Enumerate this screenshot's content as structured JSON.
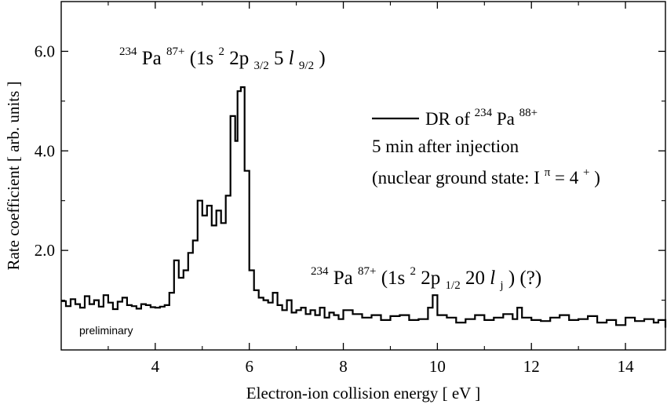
{
  "chart_data": {
    "type": "line",
    "xlabel": "Electron-ion collision energy [ eV ]",
    "ylabel": "Rate coefficient [ arb. units ]",
    "xlim": [
      2.0,
      14.85
    ],
    "ylim": [
      0.0,
      7.0
    ],
    "x_ticks": [
      4,
      6,
      8,
      10,
      12,
      14
    ],
    "x_tick_labels": [
      "4",
      "6",
      "8",
      "10",
      "12",
      "14"
    ],
    "y_ticks": [
      2.0,
      4.0,
      6.0
    ],
    "y_tick_labels": [
      "2.0",
      "4.0",
      "6.0"
    ],
    "grid": false,
    "legend_placement": "top-right",
    "series": [
      {
        "name": "DR of 234Pa88+",
        "color": "#000000",
        "points": [
          [
            2.0,
            0.98
          ],
          [
            2.1,
            0.88
          ],
          [
            2.2,
            1.02
          ],
          [
            2.3,
            0.92
          ],
          [
            2.4,
            0.85
          ],
          [
            2.5,
            1.08
          ],
          [
            2.6,
            0.92
          ],
          [
            2.7,
            1.0
          ],
          [
            2.8,
            0.87
          ],
          [
            2.9,
            1.1
          ],
          [
            3.0,
            0.95
          ],
          [
            3.1,
            0.82
          ],
          [
            3.2,
            0.97
          ],
          [
            3.3,
            1.05
          ],
          [
            3.4,
            0.9
          ],
          [
            3.5,
            0.88
          ],
          [
            3.6,
            0.83
          ],
          [
            3.7,
            0.92
          ],
          [
            3.8,
            0.9
          ],
          [
            3.9,
            0.86
          ],
          [
            4.0,
            0.85
          ],
          [
            4.1,
            0.87
          ],
          [
            4.2,
            0.9
          ],
          [
            4.3,
            1.15
          ],
          [
            4.4,
            1.8
          ],
          [
            4.5,
            1.45
          ],
          [
            4.6,
            1.6
          ],
          [
            4.7,
            1.95
          ],
          [
            4.8,
            2.2
          ],
          [
            4.9,
            3.0
          ],
          [
            5.0,
            2.7
          ],
          [
            5.1,
            2.9
          ],
          [
            5.2,
            2.5
          ],
          [
            5.3,
            2.8
          ],
          [
            5.4,
            2.55
          ],
          [
            5.5,
            3.1
          ],
          [
            5.6,
            4.7
          ],
          [
            5.7,
            4.2
          ],
          [
            5.75,
            5.2
          ],
          [
            5.82,
            5.28
          ],
          [
            5.9,
            3.6
          ],
          [
            6.0,
            1.6
          ],
          [
            6.1,
            1.2
          ],
          [
            6.2,
            1.05
          ],
          [
            6.3,
            1.0
          ],
          [
            6.4,
            0.95
          ],
          [
            6.5,
            1.15
          ],
          [
            6.6,
            0.9
          ],
          [
            6.7,
            0.8
          ],
          [
            6.8,
            1.0
          ],
          [
            6.9,
            0.75
          ],
          [
            7.0,
            0.8
          ],
          [
            7.1,
            0.85
          ],
          [
            7.2,
            0.72
          ],
          [
            7.3,
            0.8
          ],
          [
            7.4,
            0.7
          ],
          [
            7.5,
            0.85
          ],
          [
            7.6,
            0.65
          ],
          [
            7.7,
            0.75
          ],
          [
            7.8,
            0.7
          ],
          [
            7.9,
            0.62
          ],
          [
            8.0,
            0.8
          ],
          [
            8.2,
            0.72
          ],
          [
            8.4,
            0.65
          ],
          [
            8.6,
            0.7
          ],
          [
            8.8,
            0.6
          ],
          [
            9.0,
            0.68
          ],
          [
            9.2,
            0.7
          ],
          [
            9.4,
            0.6
          ],
          [
            9.6,
            0.62
          ],
          [
            9.8,
            0.85
          ],
          [
            9.9,
            1.1
          ],
          [
            10.0,
            0.7
          ],
          [
            10.2,
            0.65
          ],
          [
            10.4,
            0.55
          ],
          [
            10.6,
            0.62
          ],
          [
            10.8,
            0.7
          ],
          [
            11.0,
            0.6
          ],
          [
            11.2,
            0.65
          ],
          [
            11.4,
            0.72
          ],
          [
            11.6,
            0.62
          ],
          [
            11.7,
            0.85
          ],
          [
            11.8,
            0.65
          ],
          [
            12.0,
            0.6
          ],
          [
            12.2,
            0.58
          ],
          [
            12.4,
            0.65
          ],
          [
            12.6,
            0.7
          ],
          [
            12.8,
            0.6
          ],
          [
            13.0,
            0.62
          ],
          [
            13.2,
            0.68
          ],
          [
            13.4,
            0.55
          ],
          [
            13.6,
            0.6
          ],
          [
            13.8,
            0.5
          ],
          [
            14.0,
            0.65
          ],
          [
            14.2,
            0.58
          ],
          [
            14.4,
            0.62
          ],
          [
            14.6,
            0.55
          ],
          [
            14.7,
            0.6
          ],
          [
            14.85,
            0.45
          ]
        ]
      }
    ],
    "annotations": {
      "peak_label": {
        "mass": "234",
        "element": "Pa",
        "charge": "87+",
        "config_open": " (1s",
        "sq": "2",
        "p_part": " 2p",
        "p_sub": "3/2",
        "n_part": " 5",
        "l_italic": "l",
        "l_sub": "9/2",
        "close": ")"
      },
      "secondary_label": {
        "mass": "234",
        "element": "Pa",
        "charge": "87+",
        "config_open": " (1s",
        "sq": "2",
        "p_part": " 2p",
        "p_sub": "1/2",
        "n_part": " 20",
        "l_italic": "l",
        "l_sub": "j",
        "close": ") (?)"
      },
      "legend": {
        "line1_prefix": "DR of ",
        "line1_mass": "234",
        "line1_element": "Pa",
        "line1_charge": "88+",
        "line2": "5 min after injection",
        "line3_prefix": "(nuclear ground state: I",
        "line3_sup": "π",
        "line3_mid": " = 4",
        "line3_sup2": "+",
        "line3_suffix": ")"
      },
      "preliminary": "preliminary"
    }
  }
}
